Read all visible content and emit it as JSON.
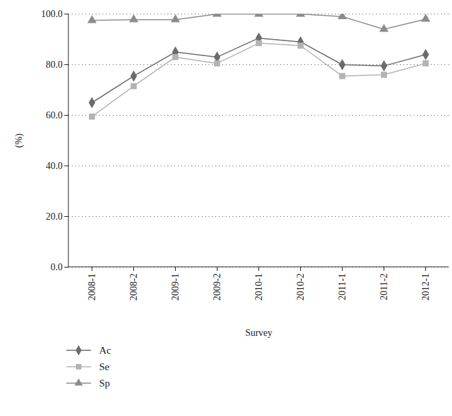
{
  "chart_data": {
    "type": "line",
    "x_label": "Survey",
    "y_label": "(%)",
    "categories": [
      "2008-1",
      "2008-2",
      "2009-1",
      "2009-2",
      "2010-1",
      "2010-2",
      "2011-1",
      "2011-2",
      "2012-1"
    ],
    "series": [
      {
        "name": "Ac",
        "color": "#6b6b6b",
        "marker": "diamond",
        "values": [
          65.0,
          75.5,
          85.0,
          83.0,
          90.5,
          89.0,
          80.0,
          79.5,
          84.0
        ]
      },
      {
        "name": "Se",
        "color": "#b3b3b3",
        "marker": "square",
        "values": [
          59.5,
          71.5,
          83.0,
          80.5,
          88.5,
          87.5,
          75.5,
          76.0,
          80.5
        ]
      },
      {
        "name": "Sp",
        "color": "#8c8c8c",
        "marker": "triangle",
        "values": [
          97.5,
          97.8,
          97.8,
          100,
          100,
          100,
          99.0,
          94.0,
          98.0
        ]
      }
    ],
    "ylim": [
      0,
      100
    ],
    "yticks": [
      {
        "value": 0,
        "label": "0.0"
      },
      {
        "value": 20,
        "label": "20.0"
      },
      {
        "value": 40,
        "label": "40.0"
      },
      {
        "value": 60,
        "label": "60.0"
      },
      {
        "value": 80,
        "label": "80.0"
      },
      {
        "value": 100,
        "label": "100.0"
      }
    ],
    "grid": true,
    "legend": "bottom"
  }
}
